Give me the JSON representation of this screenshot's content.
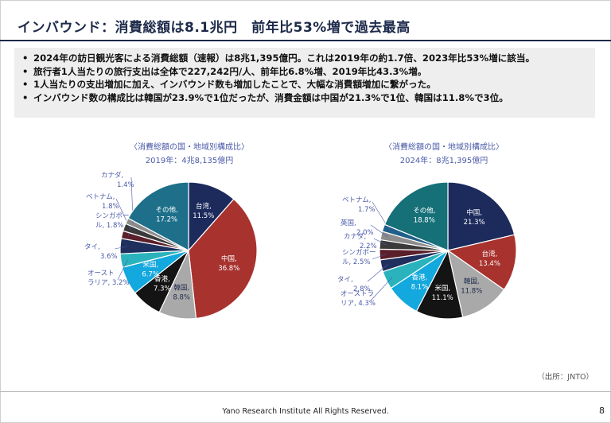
{
  "header": {
    "title": "インバウンド：消費総額は8.1兆円　前年比53%増で過去最高"
  },
  "bullets": [
    "2024年の訪日観光客による消費総額（速報）は8兆1,395億円。これは2019年の約1.7倍、2023年比53%増に該当。",
    "旅行者1人当たりの旅行支出は全体で227,242円/人、前年比6.8%増、2019年比43.3%増。",
    "1人当たりの支出増加に加え、インバウンド数も増加したことで、大幅な消費額増加に繋がった。",
    "インバウンド数の構成比は韓国が23.9%で1位だったが、消費金額は中国が21.3%で1位、韓国は11.8%で3位。"
  ],
  "chart_data": [
    {
      "type": "pie",
      "title": "〈消費総額の国・地域別構成比〉",
      "subtitle": "2019年：4兆8,135億円",
      "slices": [
        {
          "label": "台湾,",
          "value": 11.5,
          "value_text": "11.5%",
          "color": "#1c2a5c",
          "label_pos": "inside"
        },
        {
          "label": "中国,",
          "value": 36.8,
          "value_text": "36.8%",
          "color": "#a8322e",
          "label_pos": "inside"
        },
        {
          "label": "韓国,",
          "value": 8.8,
          "value_text": "8.8%",
          "color": "#a9a9a9",
          "label_pos": "inside"
        },
        {
          "label": "香港,",
          "value": 7.3,
          "value_text": "7.3%",
          "color": "#141414",
          "label_pos": "inside"
        },
        {
          "label": "米国,",
          "value": 6.7,
          "value_text": "6.7%",
          "color": "#13a8de",
          "label_pos": "inside"
        },
        {
          "label": "オースト",
          "label2": "ラリア,",
          "value": 3.2,
          "value_text": "3.2%",
          "color": "#2bb3bd",
          "label_pos": "outside"
        },
        {
          "label": "タイ,",
          "value": 3.6,
          "value_text": "3.6%",
          "color": "#1f2f5e",
          "label_pos": "outside"
        },
        {
          "label": "シンガポー",
          "label2": "ル,",
          "value": 1.8,
          "value_text": "1.8%",
          "color": "#5a1f2a",
          "label_pos": "outside"
        },
        {
          "label": "ベトナム,",
          "value": 1.8,
          "value_text": "1.8%",
          "color": "#3a3a3a",
          "label_pos": "outside"
        },
        {
          "label": "カナダ,",
          "value": 1.4,
          "value_text": "1.4%",
          "color": "#8c8c8c",
          "label_pos": "outside"
        },
        {
          "label": "その他,",
          "value": 17.2,
          "value_text": "17.2%",
          "color": "#1d6f8a",
          "label_pos": "inside"
        }
      ]
    },
    {
      "type": "pie",
      "title": "〈消費総額の国・地域別構成比〉",
      "subtitle": "2024年：8兆1,395億円",
      "slices": [
        {
          "label": "中国,",
          "value": 21.3,
          "value_text": "21.3%",
          "color": "#1c2a5c",
          "label_pos": "inside"
        },
        {
          "label": "台湾,",
          "value": 13.4,
          "value_text": "13.4%",
          "color": "#a8322e",
          "label_pos": "inside"
        },
        {
          "label": "韓国,",
          "value": 11.8,
          "value_text": "11.8%",
          "color": "#a9a9a9",
          "label_pos": "inside"
        },
        {
          "label": "米国,",
          "value": 11.1,
          "value_text": "11.1%",
          "color": "#141414",
          "label_pos": "inside"
        },
        {
          "label": "香港,",
          "value": 8.1,
          "value_text": "8.1%",
          "color": "#13a8de",
          "label_pos": "inside"
        },
        {
          "label": "オーストラ",
          "label2": "リア,",
          "value": 4.3,
          "value_text": "4.3%",
          "color": "#2bb3bd",
          "label_pos": "outside"
        },
        {
          "label": "タイ,",
          "value": 2.8,
          "value_text": "2.8%",
          "color": "#1f2f5e",
          "label_pos": "outside"
        },
        {
          "label": "シンガポー",
          "label2": "ル,",
          "value": 2.5,
          "value_text": "2.5%",
          "color": "#5a1f2a",
          "label_pos": "outside"
        },
        {
          "label": "カナダ,",
          "value": 2.2,
          "value_text": "2.2%",
          "color": "#3a3a3a",
          "label_pos": "outside"
        },
        {
          "label": "英国,",
          "value": 2.0,
          "value_text": "2.0%",
          "color": "#8c8c8c",
          "label_pos": "outside"
        },
        {
          "label": "ベトナム,",
          "value": 1.7,
          "value_text": "1.7%",
          "color": "#1f5f8a",
          "label_pos": "outside"
        },
        {
          "label": "その他,",
          "value": 18.8,
          "value_text": "18.8%",
          "color": "#167078",
          "label_pos": "inside"
        }
      ]
    }
  ],
  "source": "（出所：JNTO）",
  "footer": {
    "copyright": "Yano Research Institute All Rights Reserved.",
    "page_number": "8"
  }
}
